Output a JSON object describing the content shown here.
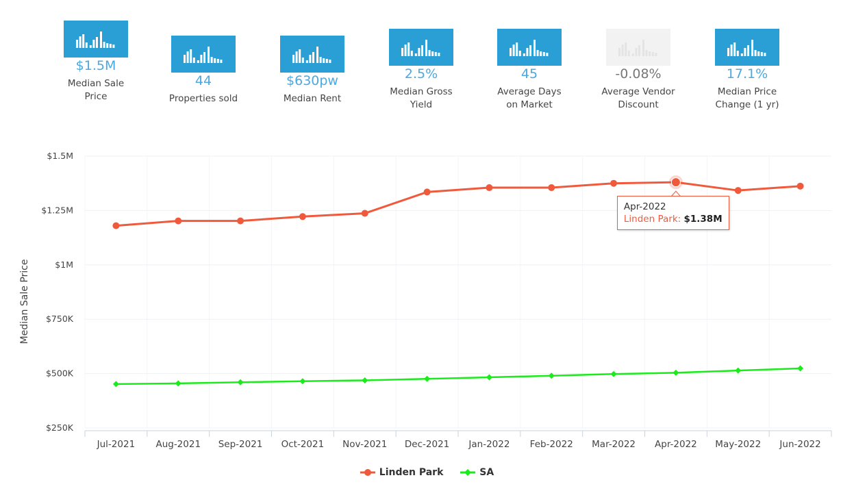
{
  "stats": [
    {
      "value": "$1.5M",
      "label": "Median Sale Price",
      "icon": "bar-chart-icon"
    },
    {
      "value": "44",
      "label": "Properties sold",
      "icon": "bar-chart-icon"
    },
    {
      "value": "$630pw",
      "label": "Median Rent",
      "icon": "bar-chart-icon"
    },
    {
      "value": "2.5%",
      "label": "Median Gross Yield",
      "icon": "bar-chart-icon"
    },
    {
      "value": "45",
      "label": "Average Days on Market",
      "icon": "bar-chart-icon"
    },
    {
      "value": "-0.08%",
      "label": "Average Vendor Discount",
      "icon": "bar-chart-icon"
    },
    {
      "value": "17.1%",
      "label": "Median Price Change (1 yr)",
      "icon": "bar-chart-icon"
    }
  ],
  "colors": {
    "accent": "#2a9fd6",
    "linden": "#f05a3c",
    "sa": "#1aeb1a",
    "value_text": "#4ba8e0"
  },
  "chart_data": {
    "type": "line",
    "title": "",
    "xlabel": "",
    "ylabel": "Median Sale Price",
    "categories": [
      "Jul-2021",
      "Aug-2021",
      "Sep-2021",
      "Oct-2021",
      "Nov-2021",
      "Dec-2021",
      "Jan-2022",
      "Feb-2022",
      "Mar-2022",
      "Apr-2022",
      "May-2022",
      "Jun-2022"
    ],
    "series": [
      {
        "name": "Linden Park",
        "values": [
          1180000,
          1202000,
          1202000,
          1222000,
          1237000,
          1335000,
          1355000,
          1355000,
          1375000,
          1380000,
          1342000,
          1362000
        ]
      },
      {
        "name": "SA",
        "values": [
          452000,
          455000,
          460000,
          465000,
          469000,
          476000,
          483000,
          490000,
          498000,
          504000,
          514000,
          524000
        ]
      }
    ],
    "ylim": [
      250000,
      1500000
    ],
    "yticks": [
      250000,
      500000,
      750000,
      1000000,
      1250000,
      1500000
    ],
    "ytick_labels": [
      "$250K",
      "$500K",
      "$750K",
      "$1M",
      "$1.25M",
      "$1.5M"
    ],
    "legend_position": "bottom-center",
    "tooltip": {
      "category": "Apr-2022",
      "series": "Linden Park",
      "value": "$1.38M"
    }
  }
}
